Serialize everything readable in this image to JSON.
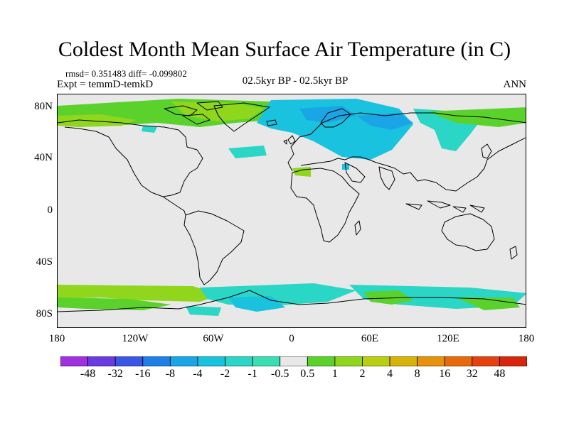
{
  "title": "Coldest Month Mean Surface Air Temperature (in C)",
  "stats": "rmsd= 0.351483 diff= -0.099802",
  "experiment": "Expt = temmD-temkD",
  "period": "02.5kyr BP - 02.5kyr BP",
  "season": "ANN",
  "lat_ticks": [
    "80N",
    "40N",
    "0",
    "40S",
    "80S"
  ],
  "lon_ticks": [
    "180",
    "120W",
    "60W",
    "0",
    "60E",
    "120E",
    "180"
  ],
  "colorbar": {
    "labels": [
      "-48",
      "-32",
      "-16",
      "-8",
      "-4",
      "-2",
      "-1",
      "-0.5",
      "0.5",
      "1",
      "2",
      "4",
      "8",
      "16",
      "32",
      "48"
    ],
    "colors": [
      "#9f2fdf",
      "#6a3be0",
      "#3b56e4",
      "#1e7fe6",
      "#1aa6e6",
      "#19c2de",
      "#2ad6c6",
      "#3adfb1",
      "#e8e8e8",
      "#5bd22b",
      "#8fd61c",
      "#b8cf10",
      "#d8b40a",
      "#e6920a",
      "#e8690a",
      "#e54010",
      "#d6260c"
    ]
  },
  "colors": {
    "background": "#e8e8e8",
    "coast": "#000000"
  }
}
